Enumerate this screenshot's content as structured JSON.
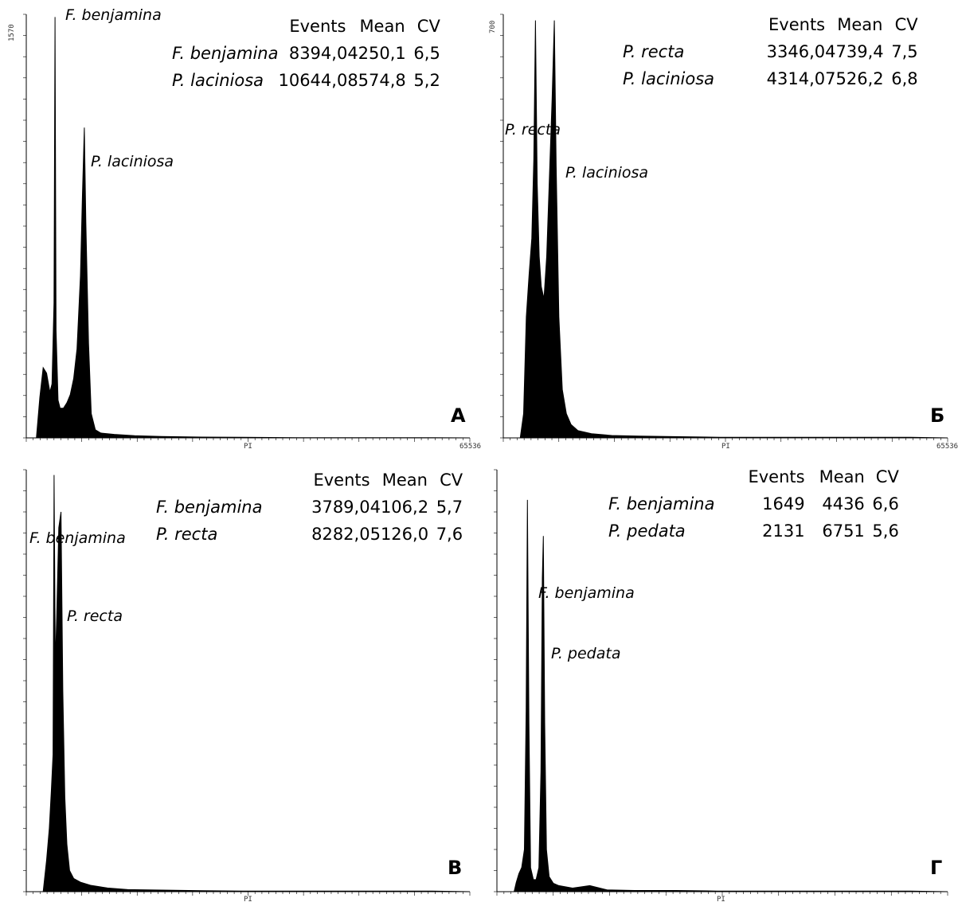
{
  "chart_data": [
    {
      "type": "area",
      "panel_letter": "А",
      "xlabel": "PI",
      "ylabel": "",
      "xlim": [
        0,
        65536
      ],
      "ylim": [
        0,
        1570
      ],
      "y_max_label": "1570",
      "x_max_label": "65536",
      "stats_header": [
        "Events",
        "Mean",
        "CV"
      ],
      "stats": [
        {
          "species": "F. benjamina",
          "events": "8394,0",
          "mean": "4250,1",
          "cv": "6,5"
        },
        {
          "species": "P. laciniosa",
          "events": "10644,0",
          "mean": "8574,8",
          "cv": "5,2"
        }
      ],
      "peak_labels": [
        "F. benjamina",
        "P. laciniosa"
      ],
      "histogram": {
        "x": [
          0,
          500,
          1000,
          1500,
          2000,
          2500,
          3000,
          3500,
          3800,
          4100,
          4250,
          4400,
          4700,
          5000,
          5500,
          6000,
          6500,
          7000,
          7500,
          8000,
          8300,
          8575,
          8800,
          9200,
          9600,
          10200,
          11000,
          13000,
          16000,
          20000,
          26000,
          32000,
          40000,
          50000,
          60000,
          65536
        ],
        "y": [
          0,
          0,
          0,
          0,
          150,
          260,
          240,
          170,
          200,
          500,
          1560,
          400,
          140,
          110,
          110,
          130,
          160,
          220,
          330,
          600,
          900,
          1150,
          800,
          350,
          90,
          30,
          18,
          13,
          8,
          5,
          3,
          2,
          1,
          1,
          1,
          0
        ]
      }
    },
    {
      "type": "area",
      "panel_letter": "Б",
      "xlabel": "PI",
      "ylabel": "",
      "xlim": [
        0,
        65536
      ],
      "ylim": [
        0,
        700
      ],
      "y_max_label": "700",
      "x_max_label": "65536",
      "stats_header": [
        "Events",
        "Mean",
        "CV"
      ],
      "stats": [
        {
          "species": "P. recta",
          "events": "3346,0",
          "mean": "4739,4",
          "cv": "7,5"
        },
        {
          "species": "P. laciniosa",
          "events": "4314,0",
          "mean": "7526,2",
          "cv": "6,8"
        }
      ],
      "peak_labels": [
        "P. recta",
        "P. laciniosa"
      ],
      "histogram": {
        "x": [
          0,
          500,
          1000,
          1500,
          2000,
          2500,
          3000,
          3400,
          3800,
          4200,
          4500,
          4740,
          5000,
          5300,
          5600,
          6000,
          6400,
          6800,
          7200,
          7526,
          7800,
          8200,
          8700,
          9300,
          10000,
          11000,
          13000,
          16000,
          20000,
          26000,
          32000,
          40000,
          50000,
          60000,
          65536
        ],
        "y": [
          0,
          0,
          0,
          0,
          0,
          0,
          40,
          200,
          270,
          330,
          460,
          690,
          420,
          300,
          250,
          230,
          300,
          430,
          560,
          690,
          450,
          200,
          80,
          40,
          22,
          12,
          7,
          4,
          3,
          2,
          1,
          1,
          1,
          1,
          0
        ]
      }
    },
    {
      "type": "area",
      "panel_letter": "В",
      "xlabel": "PI",
      "ylabel": "",
      "xlim": [
        0,
        65536
      ],
      "ylim": [
        0,
        800
      ],
      "y_max_label": "",
      "x_max_label": "",
      "stats_header": [
        "Events",
        "Mean",
        "CV"
      ],
      "stats": [
        {
          "species": "F. benjamina",
          "events": "3789,0",
          "mean": "4106,2",
          "cv": "5,7"
        },
        {
          "species": "P. recta",
          "events": "8282,0",
          "mean": "5126,0",
          "cv": "7,6"
        }
      ],
      "peak_labels": [
        "F. benjamina",
        "P. recta"
      ],
      "histogram": {
        "x": [
          0,
          500,
          1000,
          1500,
          2000,
          2500,
          3000,
          3400,
          3700,
          3950,
          4106,
          4300,
          4500,
          4800,
          5126,
          5400,
          5700,
          6000,
          6400,
          7000,
          8000,
          9500,
          12000,
          15000,
          20000,
          26000,
          32000,
          40000,
          50000,
          60000,
          65536
        ],
        "y": [
          0,
          0,
          0,
          0,
          0,
          0,
          60,
          120,
          190,
          260,
          790,
          430,
          520,
          690,
          720,
          380,
          180,
          90,
          40,
          25,
          18,
          12,
          7,
          4,
          3,
          2,
          1,
          1,
          1,
          1,
          0
        ]
      }
    },
    {
      "type": "area",
      "panel_letter": "Г",
      "xlabel": "PI",
      "ylabel": "",
      "xlim": [
        0,
        65536
      ],
      "ylim": [
        0,
        700
      ],
      "y_max_label": "",
      "x_max_label": "",
      "stats_header": [
        "Events",
        "Mean",
        "CV"
      ],
      "stats": [
        {
          "species": "F. benjamina",
          "events": "1649",
          "mean": "4436",
          "cv": "6,6"
        },
        {
          "species": "P. pedata",
          "events": "2131",
          "mean": "6751",
          "cv": "5,6"
        }
      ],
      "peak_labels": [
        "F. benjamina",
        "P. pedata"
      ],
      "histogram": {
        "x": [
          0,
          500,
          1000,
          1500,
          2000,
          2500,
          2800,
          3200,
          3600,
          4000,
          4250,
          4436,
          4650,
          4900,
          5300,
          5700,
          6100,
          6400,
          6600,
          6751,
          6950,
          7200,
          7600,
          8200,
          9000,
          11000,
          13500,
          16000,
          20000,
          26000,
          32000,
          40000,
          50000,
          60000,
          65536
        ],
        "y": [
          0,
          0,
          0,
          0,
          0,
          0,
          15,
          30,
          40,
          70,
          300,
          650,
          280,
          40,
          20,
          20,
          40,
          200,
          520,
          590,
          280,
          70,
          25,
          14,
          10,
          6,
          10,
          3,
          2,
          2,
          1,
          1,
          1,
          1,
          0
        ]
      }
    }
  ]
}
